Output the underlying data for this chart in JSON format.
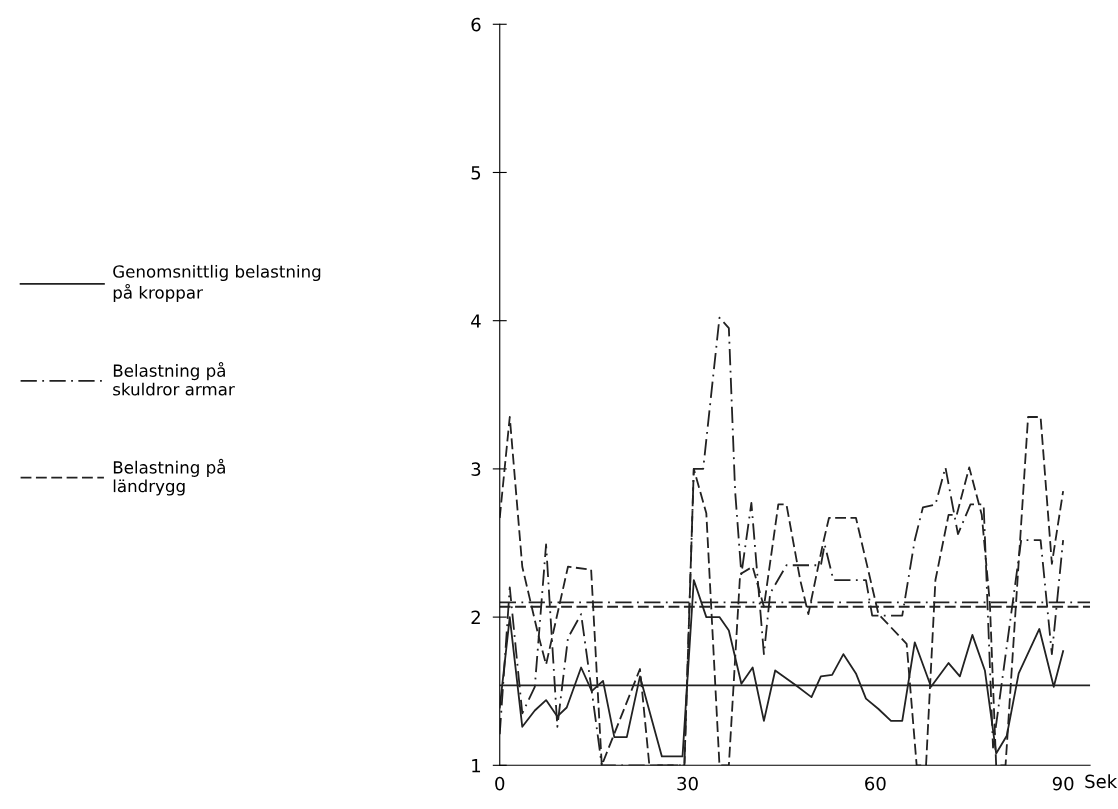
{
  "chart_data": {
    "type": "line",
    "xlabel": "Sek",
    "xlim": [
      0,
      94.3
    ],
    "xticks": [
      0,
      30,
      60,
      90
    ],
    "ylim": [
      1,
      6
    ],
    "yticks": [
      1,
      2,
      3,
      4,
      5,
      6
    ],
    "grid": false,
    "legend": "left",
    "marker": "none",
    "series": [
      {
        "name": "Genomsnittlig belastning\npå kroppar",
        "color": "#222222",
        "line_style": "solid",
        "x": [
          0,
          1.6,
          3.6,
          5.6,
          7.4,
          9.2,
          10.7,
          13,
          14.7,
          16.5,
          18.3,
          20.3,
          22.4,
          25.9,
          29.2,
          31,
          33,
          35.1,
          36.6,
          38.6,
          40.4,
          42.2,
          44,
          47.3,
          49.8,
          51.3,
          53.1,
          54.9,
          56.9,
          58.5,
          60.5,
          62.5,
          64.3,
          66.3,
          68.9,
          71.7,
          73.5,
          75.5,
          77.5,
          79.3,
          81,
          82.9,
          86.2,
          88.5,
          90
        ],
        "values": [
          1.39,
          2.0,
          1.26,
          1.37,
          1.44,
          1.33,
          1.39,
          1.66,
          1.5,
          1.57,
          1.19,
          1.19,
          1.6,
          1.06,
          1.06,
          2.25,
          2.0,
          2.0,
          1.91,
          1.55,
          1.66,
          1.3,
          1.64,
          1.54,
          1.46,
          1.6,
          1.61,
          1.75,
          1.62,
          1.45,
          1.38,
          1.3,
          1.3,
          1.83,
          1.53,
          1.69,
          1.6,
          1.88,
          1.64,
          1.08,
          1.2,
          1.62,
          1.92,
          1.53,
          1.77
        ]
      },
      {
        "name": "Belastning på\nskuldror armar",
        "color": "#222222",
        "line_style": "dashdot",
        "x": [
          0,
          1.6,
          3.6,
          5.6,
          7.4,
          9.2,
          10.9,
          13,
          14.7,
          16.3,
          21.9,
          29.5,
          31,
          32.5,
          35.1,
          36.6,
          37.6,
          38.6,
          40.2,
          42.2,
          43.2,
          45.8,
          51.3,
          51.9,
          53.3,
          58.5,
          59.5,
          64.3,
          66.3,
          67.6,
          69.6,
          71.2,
          73.2,
          75.2,
          77.3,
          78.8,
          83.3,
          86.4,
          88.2,
          90
        ],
        "values": [
          1.21,
          2.2,
          1.35,
          1.53,
          2.49,
          1.26,
          1.86,
          2.02,
          1.5,
          1.0,
          1.0,
          1.0,
          3.0,
          3.0,
          4.02,
          3.95,
          2.85,
          2.29,
          2.77,
          1.75,
          2.16,
          2.35,
          2.35,
          2.49,
          2.25,
          2.25,
          2.01,
          2.01,
          2.52,
          2.74,
          2.76,
          3.01,
          2.56,
          2.76,
          2.76,
          1.12,
          2.52,
          2.52,
          1.75,
          2.52
        ]
      },
      {
        "name": "Belastning på\nländrygg",
        "color": "#222222",
        "line_style": "dashed",
        "x": [
          0,
          1.6,
          3.6,
          6.1,
          7.4,
          10.9,
          14.6,
          16.3,
          22.4,
          23.9,
          29.5,
          31,
          33,
          35.1,
          36.6,
          38.4,
          40.4,
          42.2,
          44.5,
          45.8,
          48,
          49.3,
          51.6,
          52.6,
          56.9,
          60.5,
          65,
          66.6,
          68.1,
          69.6,
          71.7,
          73,
          75,
          77,
          78.3,
          79.3,
          80.8,
          84.4,
          86.4,
          88.2,
          90
        ],
        "values": [
          2.67,
          3.35,
          2.34,
          1.89,
          1.68,
          2.34,
          2.32,
          1.0,
          1.65,
          1.0,
          1.0,
          3.0,
          2.7,
          1.0,
          1.0,
          2.29,
          2.34,
          2.07,
          2.76,
          2.76,
          2.25,
          2.02,
          2.49,
          2.67,
          2.67,
          2.02,
          1.82,
          1.0,
          1.0,
          2.25,
          2.69,
          2.69,
          3.01,
          2.69,
          2.09,
          1.0,
          1.0,
          3.35,
          3.35,
          2.36,
          2.85
        ]
      }
    ],
    "ref_lines": [
      {
        "axis": "y",
        "value": 1.54,
        "color": "#222222",
        "line_style": "solid"
      },
      {
        "axis": "y",
        "value": 2.1,
        "color": "#222222",
        "line_style": "dashdot"
      },
      {
        "axis": "y",
        "value": 2.07,
        "color": "#222222",
        "line_style": "dashed"
      }
    ]
  }
}
